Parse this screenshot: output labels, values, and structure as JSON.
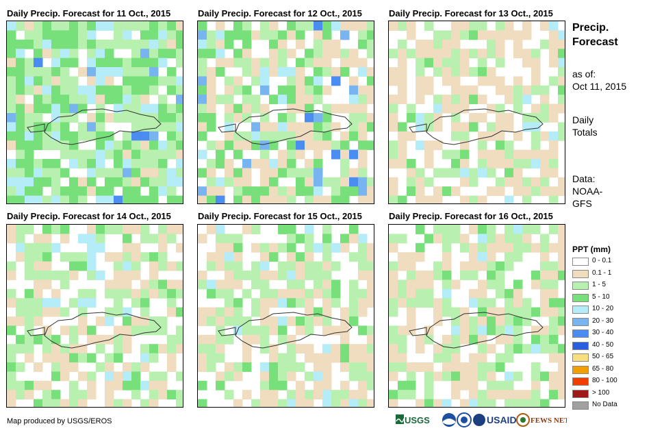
{
  "panels": [
    {
      "title": "Daily Precip. Forecast for 11 Oct., 2015",
      "seed": 11,
      "profile": "wet"
    },
    {
      "title": "Daily Precip. Forecast for 12 Oct., 2015",
      "seed": 12,
      "profile": "wet2"
    },
    {
      "title": "Daily Precip. Forecast for 13 Oct., 2015",
      "seed": 13,
      "profile": "dry"
    },
    {
      "title": "Daily Precip. Forecast for 14 Oct., 2015",
      "seed": 14,
      "profile": "mixed"
    },
    {
      "title": "Daily Precip. Forecast for 15 Oct., 2015",
      "seed": 15,
      "profile": "mixed"
    },
    {
      "title": "Daily Precip. Forecast for 16 Oct., 2015",
      "seed": 16,
      "profile": "mixed2"
    }
  ],
  "side": {
    "title_line1": "Precip.",
    "title_line2": "Forecast",
    "asof_label": "as of:",
    "asof_date": "Oct 11, 2015",
    "totals_line1": "Daily",
    "totals_line2": "Totals",
    "data_line1": "Data:",
    "data_line2": "NOAA-",
    "data_line3": "GFS"
  },
  "legend": {
    "title": "PPT (mm)",
    "items": [
      {
        "label": "0 - 0.1",
        "color": "#ffffff"
      },
      {
        "label": "0.1 - 1",
        "color": "#f0dcbe"
      },
      {
        "label": "1 - 5",
        "color": "#b8f0b0"
      },
      {
        "label": "5 - 10",
        "color": "#78e07a"
      },
      {
        "label": "10 - 20",
        "color": "#b4ecf8"
      },
      {
        "label": "20 - 30",
        "color": "#78b4f0"
      },
      {
        "label": "30 - 40",
        "color": "#4a8cf0"
      },
      {
        "label": "40 - 50",
        "color": "#2860e0"
      },
      {
        "label": "50 - 65",
        "color": "#f8e080"
      },
      {
        "label": "65 - 80",
        "color": "#f0a000"
      },
      {
        "label": "80 - 100",
        "color": "#f04000"
      },
      {
        "label": "> 100",
        "color": "#a01818"
      },
      {
        "label": "No Data",
        "color": "#a0a0a0"
      }
    ]
  },
  "credit": "Map produced by USGS/EROS",
  "logos": {
    "usgs": "USGS",
    "usaid": "USAID",
    "fewsnet": "FEWS NET",
    "noaa_icon": "noaa-icon",
    "nasa_icon": "nasa-icon"
  }
}
